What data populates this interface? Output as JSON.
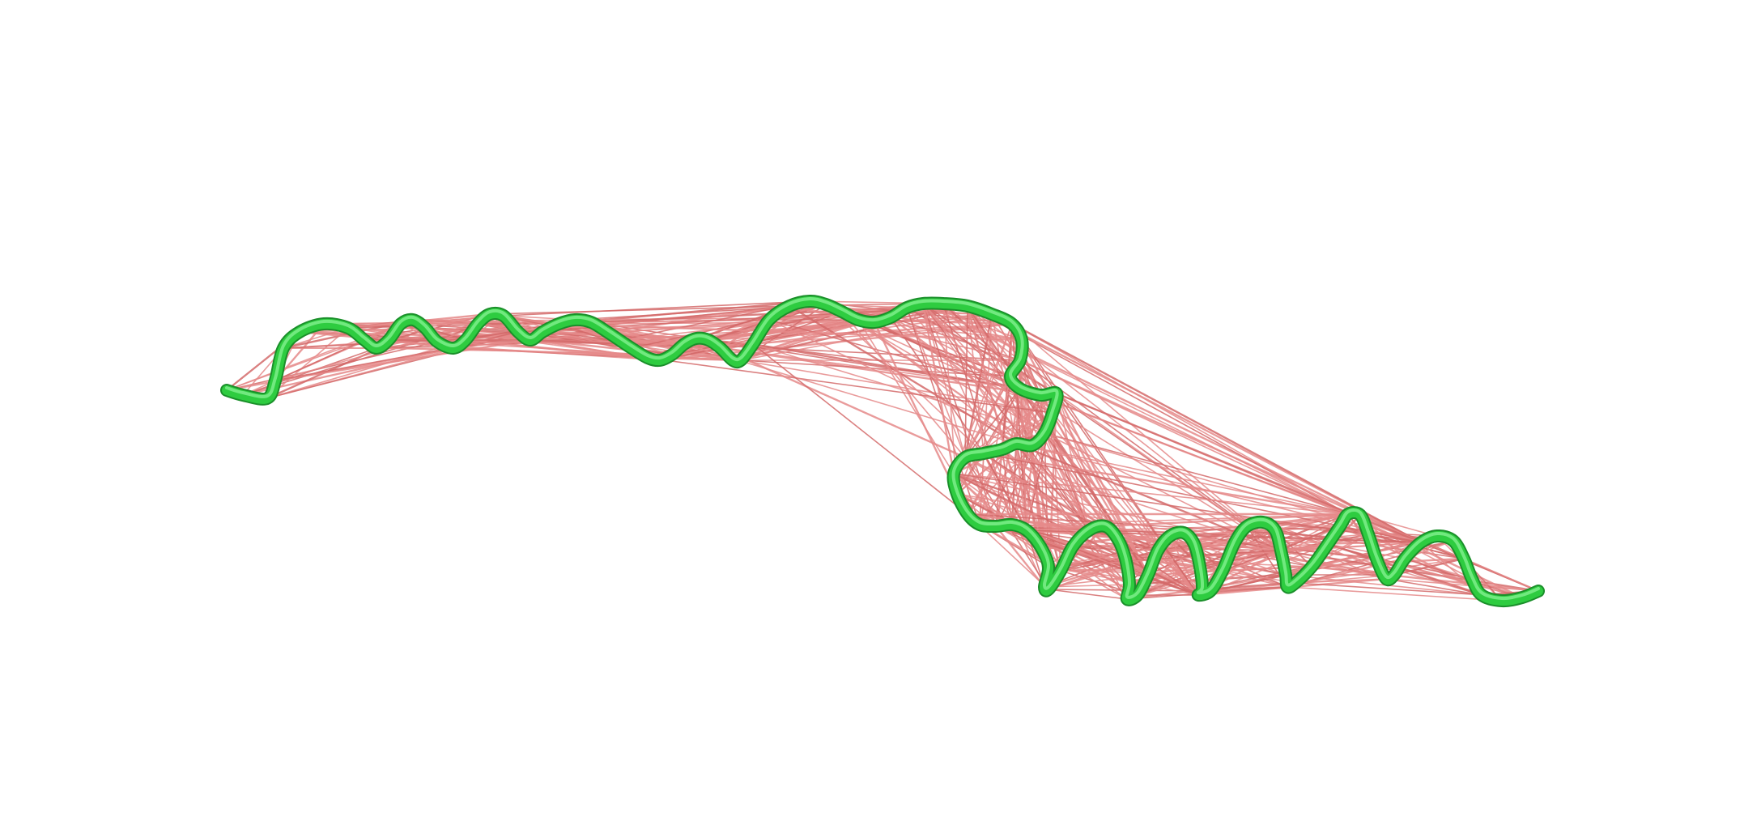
{
  "scene": {
    "background_color": "#ffffff",
    "backbone_color": "#2ecc40",
    "backbone_shadow": "#1a8f2a",
    "contact_color": "#e58a8a",
    "contact_color_dark": "#d36a6a"
  }
}
